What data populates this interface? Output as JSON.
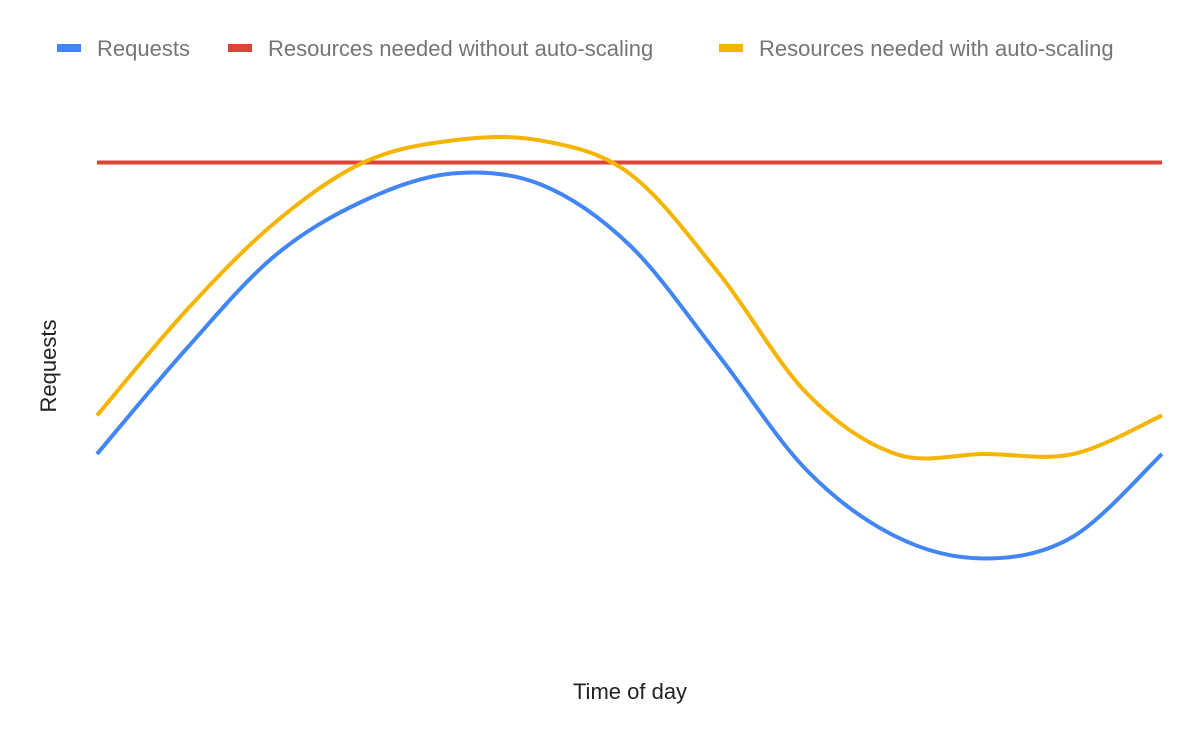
{
  "chart_data": {
    "type": "line",
    "title": "",
    "xlabel": "Time of day",
    "ylabel": "Requests",
    "x_ticks_shown": false,
    "y_ticks_shown": false,
    "grid": false,
    "legend_position": "top",
    "ylim": [
      0,
      100
    ],
    "x": [
      0,
      1,
      2,
      3,
      4,
      5,
      6,
      7,
      8,
      9,
      10,
      11,
      12
    ],
    "series": [
      {
        "name": "Requests",
        "color": "#4285f4",
        "values": [
          34,
          53,
          70,
          80,
          85,
          83,
          72,
          52,
          31,
          19,
          15,
          19,
          34
        ]
      },
      {
        "name": "Resources needed without auto-scaling",
        "color": "#db4437",
        "values": [
          87,
          87,
          87,
          87,
          87,
          87,
          87,
          87,
          87,
          87,
          87,
          87,
          87
        ]
      },
      {
        "name": "Resources needed with auto-scaling",
        "color": "#f4b400",
        "values": [
          41,
          60,
          76,
          87,
          91,
          91,
          85,
          67,
          45,
          34,
          34,
          34,
          41
        ]
      }
    ]
  }
}
